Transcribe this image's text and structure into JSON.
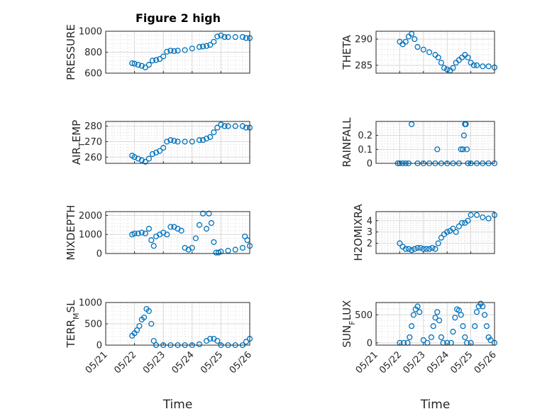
{
  "figure_title": "Figure 2 high",
  "chart_data": [
    {
      "type": "scatter",
      "ylabel": "PRESSURE",
      "ylim": [
        600,
        1000
      ],
      "yticks": [
        "600",
        "800",
        "1000"
      ],
      "yticks_v": [
        600,
        800,
        1000
      ],
      "xlabel": "",
      "xticks": [],
      "grid": true,
      "marker_color": "#0072bd",
      "x": [
        "05/21 22:00",
        "05/22 00:00",
        "05/22 03:00",
        "05/22 06:00",
        "05/22 09:00",
        "05/22 12:00",
        "05/22 15:00",
        "05/22 18:00",
        "05/22 21:00",
        "05/23 00:00",
        "05/23 03:00",
        "05/23 06:00",
        "05/23 09:00",
        "05/23 12:00",
        "05/23 18:00",
        "05/24 00:00",
        "05/24 06:00",
        "05/24 09:00",
        "05/24 12:00",
        "05/24 15:00",
        "05/24 18:00",
        "05/24 21:00",
        "05/25 00:00",
        "05/25 03:00",
        "05/25 06:00",
        "05/25 12:00",
        "05/25 18:00",
        "05/25 21:00",
        "05/26 00:00"
      ],
      "y": [
        695,
        690,
        680,
        670,
        655,
        680,
        720,
        725,
        735,
        760,
        805,
        815,
        810,
        815,
        820,
        835,
        850,
        855,
        860,
        870,
        900,
        950,
        960,
        945,
        945,
        945,
        945,
        935,
        935
      ]
    },
    {
      "type": "scatter",
      "ylabel": "THETA",
      "ylim": [
        283.5,
        291.5
      ],
      "yticks": [
        "285",
        "290"
      ],
      "yticks_v": [
        285,
        290
      ],
      "xlabel": "",
      "xticks": [],
      "grid": true,
      "marker_color": "#0072bd",
      "x": [
        "05/22 00:00",
        "05/22 03:00",
        "05/22 06:00",
        "05/22 09:00",
        "05/22 12:00",
        "05/22 15:00",
        "05/22 18:00",
        "05/23 00:00",
        "05/23 06:00",
        "05/23 12:00",
        "05/23 15:00",
        "05/23 18:00",
        "05/23 21:00",
        "05/24 00:00",
        "05/24 03:00",
        "05/24 06:00",
        "05/24 09:00",
        "05/24 12:00",
        "05/24 15:00",
        "05/24 18:00",
        "05/24 21:00",
        "05/25 00:00",
        "05/25 03:00",
        "05/25 06:00",
        "05/25 12:00",
        "05/25 18:00",
        "05/26 00:00"
      ],
      "y": [
        289.5,
        289.0,
        289.5,
        290.5,
        291.0,
        290.0,
        288.5,
        288.0,
        287.5,
        287.0,
        286.5,
        285.5,
        284.5,
        284.2,
        284.0,
        284.5,
        285.5,
        286.0,
        286.5,
        287.0,
        286.5,
        285.5,
        285.0,
        285.0,
        284.8,
        284.8,
        284.6
      ]
    },
    {
      "type": "scatter",
      "ylabel": "AIR_TEMP",
      "ylim": [
        256,
        283
      ],
      "yticks": [
        "260",
        "270",
        "280"
      ],
      "yticks_v": [
        260,
        270,
        280
      ],
      "xlabel": "",
      "xticks": [],
      "grid": true,
      "marker_color": "#0072bd",
      "x": [
        "05/21 22:00",
        "05/22 00:00",
        "05/22 03:00",
        "05/22 06:00",
        "05/22 09:00",
        "05/22 12:00",
        "05/22 15:00",
        "05/22 18:00",
        "05/22 21:00",
        "05/23 00:00",
        "05/23 03:00",
        "05/23 06:00",
        "05/23 09:00",
        "05/23 12:00",
        "05/23 18:00",
        "05/24 00:00",
        "05/24 06:00",
        "05/24 09:00",
        "05/24 12:00",
        "05/24 15:00",
        "05/24 18:00",
        "05/24 21:00",
        "05/25 00:00",
        "05/25 03:00",
        "05/25 06:00",
        "05/25 12:00",
        "05/25 18:00",
        "05/25 21:00",
        "05/26 00:00"
      ],
      "y": [
        261,
        260,
        259,
        258,
        257,
        259,
        262,
        263,
        264,
        266,
        270,
        271,
        270.5,
        270,
        270,
        270,
        271,
        271,
        272,
        273,
        276,
        279,
        281,
        280,
        280,
        280,
        280,
        279,
        279
      ]
    },
    {
      "type": "scatter",
      "ylabel": "RAINFALL",
      "ylim": [
        0,
        0.3
      ],
      "yticks": [
        "0",
        "0.1",
        "0.2"
      ],
      "yticks_v": [
        0,
        0.1,
        0.2
      ],
      "xlabel": "",
      "xticks": [],
      "grid": true,
      "marker_color": "#0072bd",
      "x": [
        "05/21 22:00",
        "05/22 00:00",
        "05/22 03:00",
        "05/22 06:00",
        "05/22 09:00",
        "05/22 12:00",
        "05/22 18:00",
        "05/23 00:00",
        "05/23 06:00",
        "05/23 12:00",
        "05/23 14:00",
        "05/23 18:00",
        "05/24 00:00",
        "05/24 06:00",
        "05/24 12:00",
        "05/24 14:00",
        "05/24 16:00",
        "05/24 17:00",
        "05/24 18:00",
        "05/24 19:00",
        "05/24 20:00",
        "05/24 21:00",
        "05/25 00:00",
        "05/25 06:00",
        "05/25 12:00",
        "05/25 18:00",
        "05/26 00:00"
      ],
      "y": [
        0,
        0,
        0,
        0,
        0,
        0.28,
        0,
        0,
        0,
        0,
        0.1,
        0,
        0,
        0,
        0,
        0.1,
        0.1,
        0.2,
        0.28,
        0.28,
        0.1,
        0,
        0,
        0,
        0,
        0,
        0
      ]
    },
    {
      "type": "scatter",
      "ylabel": "MIXDEPTH",
      "ylim": [
        0,
        2200
      ],
      "yticks": [
        "0",
        "1000",
        "2000"
      ],
      "yticks_v": [
        0,
        1000,
        2000
      ],
      "xlabel": "",
      "xticks": [],
      "grid": true,
      "marker_color": "#0072bd",
      "x": [
        "05/21 22:00",
        "05/22 00:00",
        "05/22 03:00",
        "05/22 06:00",
        "05/22 09:00",
        "05/22 12:00",
        "05/22 14:00",
        "05/22 16:00",
        "05/22 18:00",
        "05/22 21:00",
        "05/23 00:00",
        "05/23 03:00",
        "05/23 06:00",
        "05/23 09:00",
        "05/23 12:00",
        "05/23 15:00",
        "05/23 18:00",
        "05/23 21:00",
        "05/24 00:00",
        "05/24 03:00",
        "05/24 06:00",
        "05/24 09:00",
        "05/24 12:00",
        "05/24 14:00",
        "05/24 16:00",
        "05/24 18:00",
        "05/24 20:00",
        "05/24 22:00",
        "05/25 00:00",
        "05/25 06:00",
        "05/25 12:00",
        "05/25 18:00",
        "05/25 20:00",
        "05/25 22:00",
        "05/26 00:00"
      ],
      "y": [
        1000,
        1050,
        1050,
        1100,
        1050,
        1300,
        700,
        400,
        900,
        1000,
        1100,
        1000,
        1400,
        1400,
        1300,
        1200,
        300,
        200,
        300,
        800,
        1500,
        2100,
        1300,
        2100,
        1600,
        600,
        50,
        50,
        100,
        150,
        200,
        300,
        900,
        700,
        400
      ]
    },
    {
      "type": "scatter",
      "ylabel": "H2OMIXRA",
      "ylim": [
        1.1,
        4.8
      ],
      "yticks": [
        "2",
        "3",
        "4"
      ],
      "yticks_v": [
        2,
        3,
        4
      ],
      "xlabel": "",
      "xticks": [],
      "grid": true,
      "marker_color": "#0072bd",
      "x": [
        "05/22 00:00",
        "05/22 03:00",
        "05/22 06:00",
        "05/22 09:00",
        "05/22 12:00",
        "05/22 15:00",
        "05/22 18:00",
        "05/22 21:00",
        "05/23 00:00",
        "05/23 03:00",
        "05/23 06:00",
        "05/23 09:00",
        "05/23 12:00",
        "05/23 15:00",
        "05/23 18:00",
        "05/23 21:00",
        "05/24 00:00",
        "05/24 03:00",
        "05/24 06:00",
        "05/24 09:00",
        "05/24 12:00",
        "05/24 15:00",
        "05/24 18:00",
        "05/24 21:00",
        "05/25 00:00",
        "05/25 06:00",
        "05/25 12:00",
        "05/25 18:00",
        "05/26 00:00"
      ],
      "y": [
        2.0,
        1.7,
        1.5,
        1.5,
        1.4,
        1.5,
        1.6,
        1.6,
        1.5,
        1.5,
        1.5,
        1.6,
        1.5,
        2.0,
        2.5,
        2.8,
        3.0,
        3.1,
        3.3,
        3.0,
        3.5,
        3.8,
        3.8,
        4.0,
        4.5,
        4.5,
        4.3,
        4.2,
        4.5
      ]
    },
    {
      "type": "scatter",
      "ylabel": "TERR_MSL",
      "ylim": [
        0,
        1000
      ],
      "yticks": [
        "0",
        "500",
        "1000"
      ],
      "yticks_v": [
        0,
        500,
        1000
      ],
      "xlabel": "Time",
      "xticks": [
        "05/21",
        "05/22",
        "05/23",
        "05/24",
        "05/25",
        "05/26"
      ],
      "grid": true,
      "marker_color": "#0072bd",
      "x": [
        "05/21 22:00",
        "05/22 00:00",
        "05/22 02:00",
        "05/22 04:00",
        "05/22 06:00",
        "05/22 08:00",
        "05/22 10:00",
        "05/22 12:00",
        "05/22 14:00",
        "05/22 16:00",
        "05/22 18:00",
        "05/23 00:00",
        "05/23 06:00",
        "05/23 12:00",
        "05/23 18:00",
        "05/24 00:00",
        "05/24 06:00",
        "05/24 12:00",
        "05/24 15:00",
        "05/24 18:00",
        "05/24 21:00",
        "05/25 00:00",
        "05/25 06:00",
        "05/25 12:00",
        "05/25 18:00",
        "05/25 21:00",
        "05/26 00:00"
      ],
      "y": [
        220,
        280,
        350,
        450,
        600,
        650,
        850,
        800,
        500,
        100,
        0,
        0,
        0,
        0,
        0,
        0,
        20,
        100,
        150,
        150,
        100,
        0,
        0,
        0,
        0,
        80,
        150
      ]
    },
    {
      "type": "scatter",
      "ylabel": "SUN_FLUX",
      "ylim": [
        -40,
        720
      ],
      "yticks": [
        "0",
        "500"
      ],
      "yticks_v": [
        0,
        500
      ],
      "xlabel": "Time",
      "xticks": [
        "05/21",
        "05/22",
        "05/23",
        "05/24",
        "05/25",
        "05/26"
      ],
      "grid": true,
      "marker_color": "#0072bd",
      "x": [
        "05/22 00:00",
        "05/22 04:00",
        "05/22 08:00",
        "05/22 10:00",
        "05/22 12:00",
        "05/22 14:00",
        "05/22 16:00",
        "05/22 18:00",
        "05/22 20:00",
        "05/23 00:00",
        "05/23 04:00",
        "05/23 08:00",
        "05/23 10:00",
        "05/23 12:00",
        "05/23 14:00",
        "05/23 16:00",
        "05/23 18:00",
        "05/23 20:00",
        "05/24 00:00",
        "05/24 04:00",
        "05/24 06:00",
        "05/24 08:00",
        "05/24 10:00",
        "05/24 12:00",
        "05/24 14:00",
        "05/24 16:00",
        "05/24 18:00",
        "05/24 20:00",
        "05/25 00:00",
        "05/25 04:00",
        "05/25 06:00",
        "05/25 08:00",
        "05/25 10:00",
        "05/25 12:00",
        "05/25 14:00",
        "05/25 16:00",
        "05/25 18:00",
        "05/25 20:00",
        "05/26 00:00"
      ],
      "y": [
        0,
        0,
        0,
        100,
        300,
        500,
        600,
        650,
        550,
        50,
        0,
        100,
        300,
        450,
        550,
        400,
        100,
        0,
        0,
        0,
        200,
        450,
        600,
        580,
        500,
        300,
        100,
        0,
        0,
        300,
        550,
        650,
        700,
        650,
        500,
        300,
        100,
        50,
        0
      ]
    }
  ]
}
